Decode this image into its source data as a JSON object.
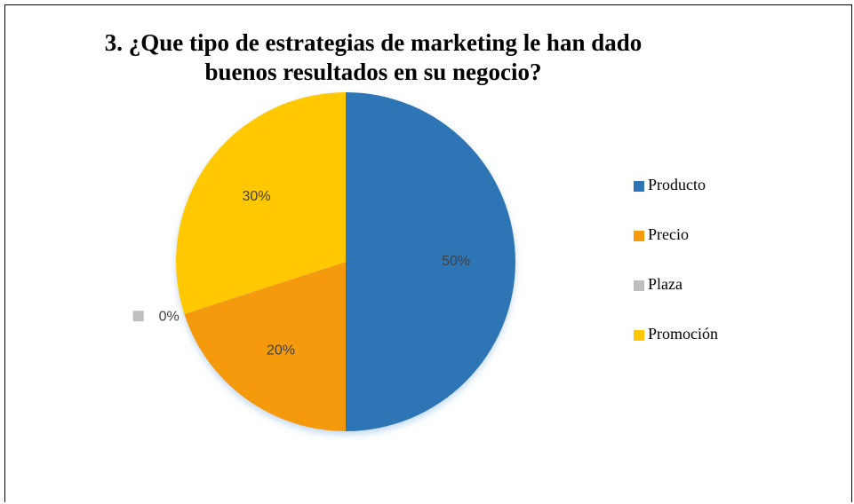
{
  "chart_data": {
    "type": "pie",
    "title": "3. ¿Que tipo de estrategias de marketing le han dado buenos resultados en su negocio?",
    "categories": [
      "Producto",
      "Precio",
      "Plaza",
      "Promoción"
    ],
    "values": [
      50,
      20,
      0,
      30
    ],
    "value_labels": [
      "50%",
      "20%",
      "0%",
      "30%"
    ],
    "colors": [
      "#2e75b6",
      "#f59a0a",
      "#bfbfbf",
      "#ffc800"
    ],
    "legend": "right"
  }
}
